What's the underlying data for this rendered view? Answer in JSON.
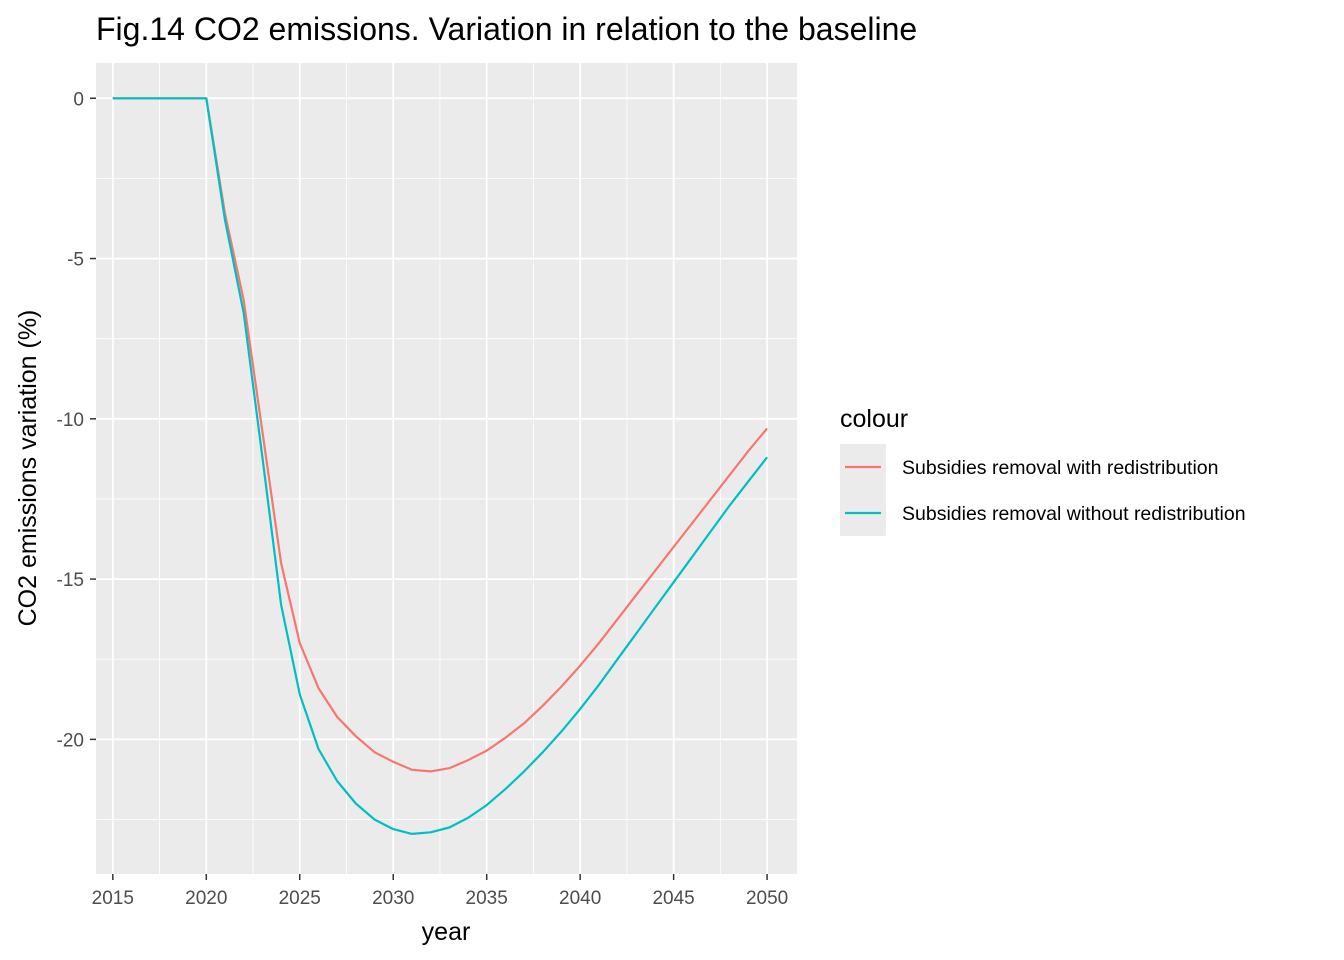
{
  "chart_data": {
    "type": "line",
    "title": "Fig.14 CO2 emissions. Variation in relation to the baseline",
    "xlabel": "year",
    "ylabel": "CO2 emissions variation (%)",
    "xlim": [
      2014.1,
      2051.6
    ],
    "ylim": [
      -24.2,
      1.1
    ],
    "x_ticks": [
      2015,
      2020,
      2025,
      2030,
      2035,
      2040,
      2045,
      2050
    ],
    "y_ticks": [
      0,
      -5,
      -10,
      -15,
      -20
    ],
    "y_tick_labels": [
      "0",
      "-5",
      "-10",
      "-15",
      "-20"
    ],
    "grid": true,
    "legend": {
      "title": "colour",
      "position": "right"
    },
    "x": [
      2015,
      2016,
      2017,
      2018,
      2019,
      2020,
      2021,
      2022,
      2023,
      2024,
      2025,
      2026,
      2027,
      2028,
      2029,
      2030,
      2031,
      2032,
      2033,
      2034,
      2035,
      2036,
      2037,
      2038,
      2039,
      2040,
      2041,
      2042,
      2043,
      2044,
      2045,
      2046,
      2047,
      2048,
      2049,
      2050
    ],
    "series": [
      {
        "name": "Subsidies removal with redistribution",
        "color": "#F8766D",
        "values": [
          0,
          0,
          0,
          0,
          0,
          0,
          -3.6,
          -6.3,
          -10.4,
          -14.5,
          -17.0,
          -18.4,
          -19.3,
          -19.9,
          -20.4,
          -20.7,
          -20.95,
          -21.0,
          -20.9,
          -20.65,
          -20.35,
          -19.95,
          -19.5,
          -18.95,
          -18.35,
          -17.7,
          -17.0,
          -16.25,
          -15.5,
          -14.75,
          -14.0,
          -13.25,
          -12.5,
          -11.75,
          -11.0,
          -10.3
        ]
      },
      {
        "name": "Subsidies removal without redistribution",
        "color": "#00BFC4",
        "values": [
          0,
          0,
          0,
          0,
          0,
          0,
          -3.8,
          -6.7,
          -11.2,
          -15.8,
          -18.6,
          -20.3,
          -21.3,
          -22.0,
          -22.5,
          -22.8,
          -22.95,
          -22.9,
          -22.75,
          -22.45,
          -22.05,
          -21.55,
          -21.0,
          -20.4,
          -19.75,
          -19.05,
          -18.3,
          -17.5,
          -16.7,
          -15.9,
          -15.1,
          -14.3,
          -13.5,
          -12.7,
          -11.95,
          -11.2
        ]
      }
    ]
  }
}
